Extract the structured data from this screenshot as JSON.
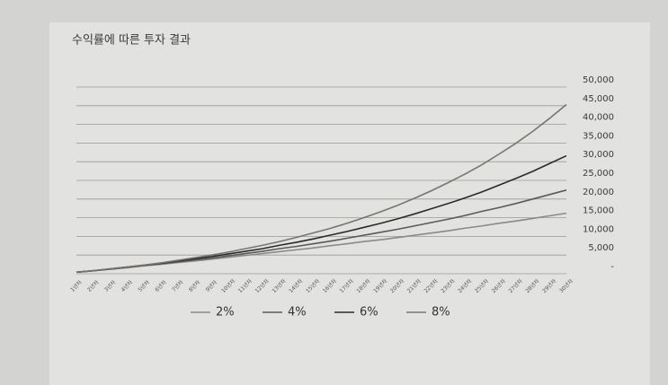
{
  "chart_data": {
    "type": "line",
    "title": "수익률에 따른 투자 결과",
    "categories": [
      "1년차",
      "2년차",
      "3년차",
      "4년차",
      "5년차",
      "6년차",
      "7년차",
      "8년차",
      "9년차",
      "10년차",
      "11년차",
      "12년차",
      "13년차",
      "14년차",
      "15년차",
      "16년차",
      "17년차",
      "18년차",
      "19년차",
      "20년차",
      "21년차",
      "22년차",
      "23년차",
      "24년차",
      "25년차",
      "26년차",
      "27년차",
      "28년차",
      "29년차",
      "30년차"
    ],
    "series": [
      {
        "name": "2%",
        "color": "#8a8a88",
        "values": [
          400,
          800,
          1200,
          1600,
          2100,
          2500,
          3000,
          3400,
          3900,
          4400,
          4900,
          5400,
          5900,
          6400,
          6900,
          7500,
          8000,
          8600,
          9100,
          9700,
          10300,
          10900,
          11500,
          12200,
          12800,
          13500,
          14100,
          14800,
          15500,
          16200
        ]
      },
      {
        "name": "4%",
        "color": "#5a5a5a",
        "values": [
          400,
          800,
          1200,
          1700,
          2200,
          2700,
          3200,
          3700,
          4200,
          4800,
          5400,
          6000,
          6700,
          7300,
          8000,
          8700,
          9500,
          10300,
          11100,
          11900,
          12800,
          13700,
          14600,
          15600,
          16700,
          17700,
          18800,
          20000,
          21200,
          22400
        ]
      },
      {
        "name": "6%",
        "color": "#2a2a2c",
        "values": [
          400,
          800,
          1300,
          1800,
          2300,
          2800,
          3400,
          4000,
          4600,
          5300,
          6000,
          6700,
          7600,
          8400,
          9300,
          10300,
          11300,
          12400,
          13500,
          14700,
          16000,
          17400,
          18800,
          20300,
          21900,
          23700,
          25500,
          27400,
          29500,
          31600
        ]
      },
      {
        "name": "8%",
        "color": "#7a746e",
        "values": [
          400,
          800,
          1300,
          1800,
          2300,
          2900,
          3600,
          4300,
          5000,
          5800,
          6700,
          7600,
          8600,
          9700,
          10900,
          12100,
          13500,
          15000,
          16600,
          18300,
          20200,
          22200,
          24400,
          26700,
          29200,
          32000,
          34900,
          38100,
          41600,
          45300
        ]
      }
    ],
    "ylim": [
      0,
      50000
    ],
    "yticks": [
      {
        "value": 0,
        "label": "-"
      },
      {
        "value": 5000,
        "label": "5,000"
      },
      {
        "value": 10000,
        "label": "10,000"
      },
      {
        "value": 15000,
        "label": "15,000"
      },
      {
        "value": 20000,
        "label": "20,000"
      },
      {
        "value": 25000,
        "label": "25,000"
      },
      {
        "value": 30000,
        "label": "30,000"
      },
      {
        "value": 35000,
        "label": "35,000"
      },
      {
        "value": 40000,
        "label": "40,000"
      },
      {
        "value": 45000,
        "label": "45,000"
      },
      {
        "value": 50000,
        "label": "50,000"
      }
    ],
    "grid": true,
    "legend": "bottom"
  }
}
